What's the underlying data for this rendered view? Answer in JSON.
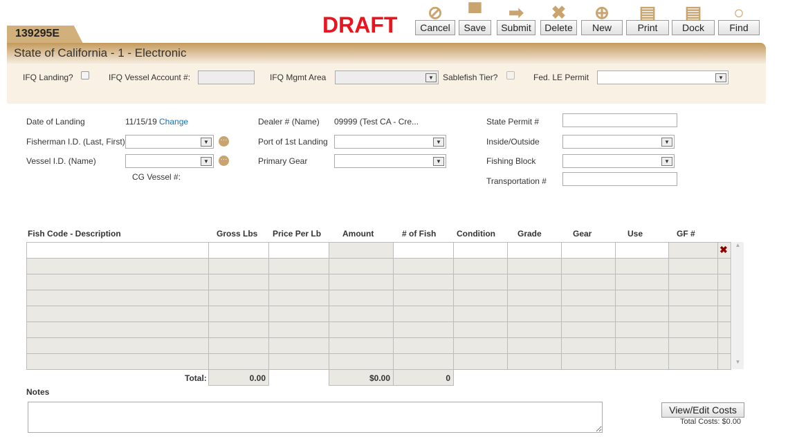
{
  "record_id": "139295E",
  "status": "DRAFT",
  "title": "State of California - 1 - Electronic",
  "toolbar": [
    {
      "label": "Cancel",
      "icon": "cancel-icon",
      "glyph": "⊘"
    },
    {
      "label": "Save",
      "icon": "save-icon",
      "glyph": "▀"
    },
    {
      "label": "Submit",
      "icon": "arrow-right-icon",
      "glyph": "➡"
    },
    {
      "label": "Delete",
      "icon": "x-icon",
      "glyph": "✖"
    },
    {
      "label": "New",
      "icon": "plus-circle-icon",
      "glyph": "⊕"
    },
    {
      "label": "Print",
      "icon": "document-icon",
      "glyph": "▤"
    },
    {
      "label": "Dock",
      "icon": "document-icon",
      "glyph": "▤"
    },
    {
      "label": "Find",
      "icon": "search-icon",
      "glyph": "○"
    }
  ],
  "ifq": {
    "landing_label": "IFQ Landing?",
    "vessel_account_label": "IFQ Vessel Account #:",
    "mgmt_area_label": "IFQ Mgmt Area",
    "sablefish_label": "Sablefish Tier?",
    "fed_permit_label": "Fed. LE Permit"
  },
  "form": {
    "date_label": "Date of Landing",
    "date_value": "11/15/19",
    "change_link": "Change",
    "fisherman_label": "Fisherman I.D. (Last, First)",
    "vessel_label": "Vessel I.D. (Name)",
    "cg_vessel_label": "CG Vessel #:",
    "dealer_label": "Dealer # (Name)",
    "dealer_value": "09999 (Test CA - Cre...",
    "port_label": "Port of 1st Landing",
    "gear_label": "Primary Gear",
    "state_permit_label": "State Permit #",
    "inside_outside_label": "Inside/Outside",
    "fishing_block_label": "Fishing Block",
    "transport_label": "Transportation #"
  },
  "table": {
    "columns": [
      "Fish Code - Description",
      "Gross Lbs",
      "Price Per Lb",
      "Amount",
      "# of Fish",
      "Condition",
      "Grade",
      "Gear",
      "Use",
      "GF #"
    ],
    "total_label": "Total:",
    "total_gross": "0.00",
    "total_amount": "$0.00",
    "total_fish": "0"
  },
  "notes_label": "Notes",
  "costs": {
    "button": "View/Edit Costs",
    "total": "Total Costs: $0.00"
  },
  "colors": {
    "accent": "#c49a5c",
    "draft": "#e8141e",
    "link": "#1a6fb5"
  }
}
